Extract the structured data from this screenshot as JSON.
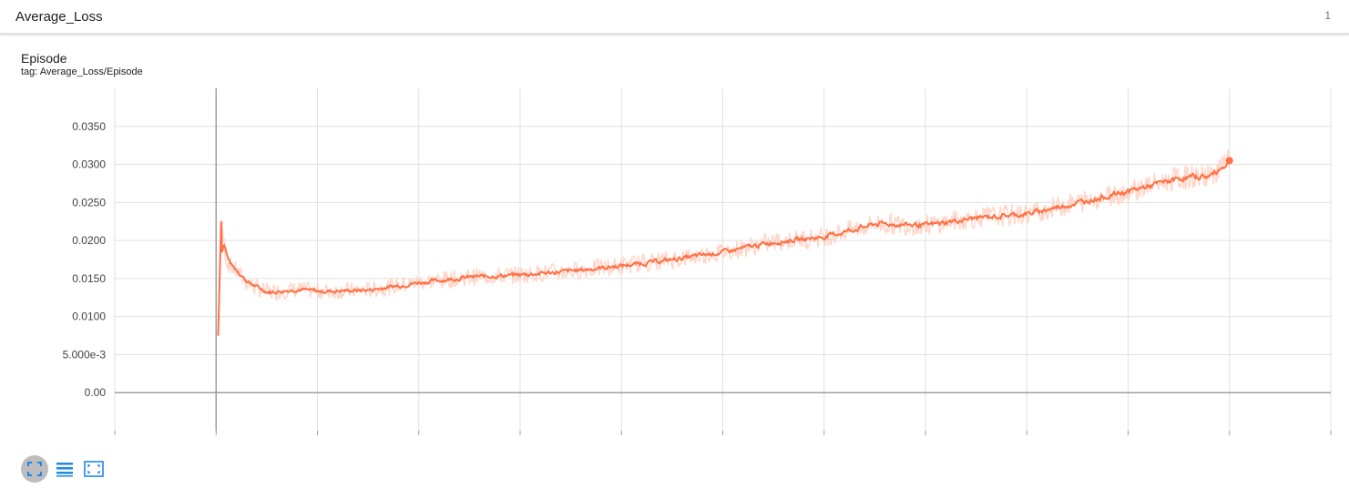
{
  "header": {
    "title": "Average_Loss",
    "count": "1"
  },
  "card": {
    "title": "Episode",
    "tag": "tag: Average_Loss/Episode"
  },
  "toolbar": {
    "expand_icon": "fit-domain-icon",
    "data_icon": "list-icon",
    "fit_icon": "expand-icon"
  },
  "colors": {
    "line": "#ff7043",
    "raw": "#ffccbc",
    "axis": "#9e9e9e",
    "grid": "#e0e0e0",
    "toolbar": "#1e88e5"
  },
  "chart_data": {
    "type": "line",
    "title": "Episode",
    "subtitle": "tag: Average_Loss/Episode",
    "ylim": [
      -0.005,
      0.04
    ],
    "xlim": [
      -100,
      1100
    ],
    "y_ticks": [
      0.0,
      0.005,
      0.01,
      0.015,
      0.02,
      0.025,
      0.03,
      0.035
    ],
    "y_tick_labels": [
      "0.00",
      "5.000e-3",
      "0.0100",
      "0.0150",
      "0.0200",
      "0.0250",
      "0.0300",
      "0.0350"
    ],
    "grid": true,
    "series": [
      {
        "x": [
          2,
          5,
          10,
          15,
          20,
          30,
          40,
          50,
          60,
          80,
          100,
          150,
          200,
          250,
          300,
          350,
          400,
          450,
          500,
          550,
          600,
          650,
          700,
          750,
          800,
          850,
          900,
          950,
          980,
          1000
        ],
        "values": [
          0.0075,
          0.0225,
          0.0175,
          0.0165,
          0.016,
          0.0145,
          0.0138,
          0.0132,
          0.0133,
          0.0136,
          0.0133,
          0.0135,
          0.0145,
          0.0152,
          0.0155,
          0.016,
          0.0167,
          0.0175,
          0.0185,
          0.0198,
          0.0205,
          0.0222,
          0.022,
          0.023,
          0.0235,
          0.025,
          0.0265,
          0.0282,
          0.0285,
          0.0305
        ]
      }
    ]
  }
}
